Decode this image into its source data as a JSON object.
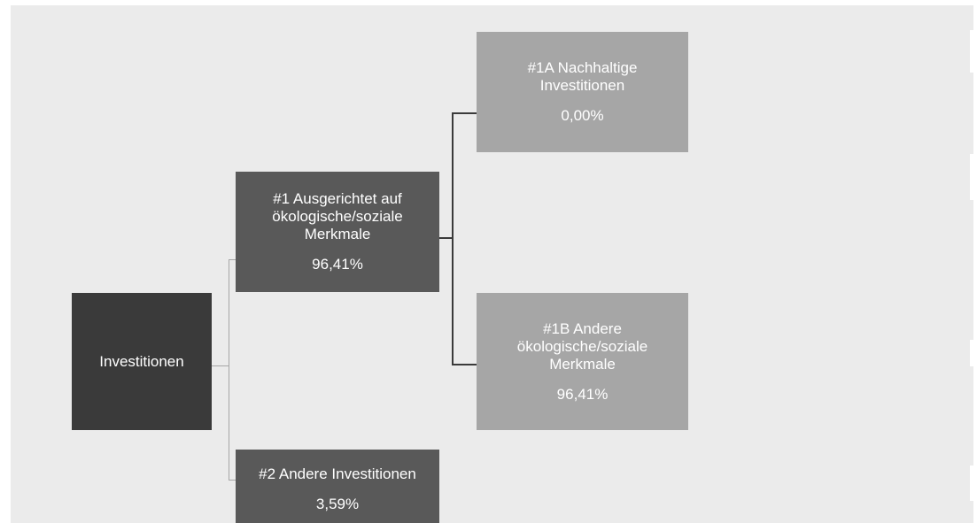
{
  "nodes": {
    "root": {
      "label": "Investitionen"
    },
    "aligned": {
      "label": "#1 Ausgerichtet auf ökologische/soziale Merkmale",
      "value": "96,41%"
    },
    "other": {
      "label": "#2 Andere Investitionen",
      "value": "3,59%"
    },
    "sustainable": {
      "label": "#1A Nachhaltige Investitionen",
      "value": "0,00%"
    },
    "other_es": {
      "label": "#1B Andere ökologische/soziale Merkmale",
      "value": "96,41%"
    }
  },
  "colors": {
    "background": "#ebebeb",
    "root": "#3a3a3a",
    "level1": "#595959",
    "level2": "#a6a6a6"
  }
}
